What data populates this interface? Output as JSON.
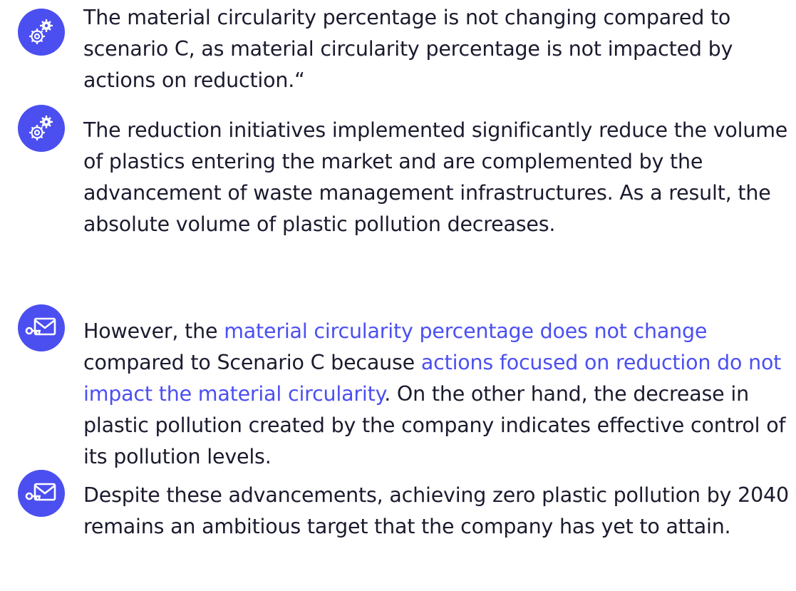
{
  "items": [
    {
      "icon": "gears",
      "segments": [
        {
          "text": "The material circularity percentage is not changing compared to scenario C, as material circularity percentage is not impacted by actions on reduction.“",
          "highlight": false
        }
      ]
    },
    {
      "icon": "gears",
      "segments": [
        {
          "text": "The reduction initiatives implemented significantly reduce the volume of plastics entering the market and are complemented by the advancement of waste management infrastructures. As a result, the absolute volume of plastic pollution decreases.",
          "highlight": false
        }
      ]
    },
    {
      "icon": "mail",
      "segments": [
        {
          "text": "However, the ",
          "highlight": false
        },
        {
          "text": "material circularity percentage does not change",
          "highlight": true
        },
        {
          "text": " compared to Scenario C because ",
          "highlight": false
        },
        {
          "text": "actions focused on reduction do not impact the material circularity",
          "highlight": true
        },
        {
          "text": ". On the other hand, the decrease in plastic pollution created by the company indicates effective control of its pollution levels.",
          "highlight": false
        }
      ]
    },
    {
      "icon": "mail",
      "segments": [
        {
          "text": "Despite these advancements, achieving zero plastic pollution by 2040 remains an ambitious target that the company has yet to attain.",
          "highlight": false
        }
      ]
    }
  ]
}
